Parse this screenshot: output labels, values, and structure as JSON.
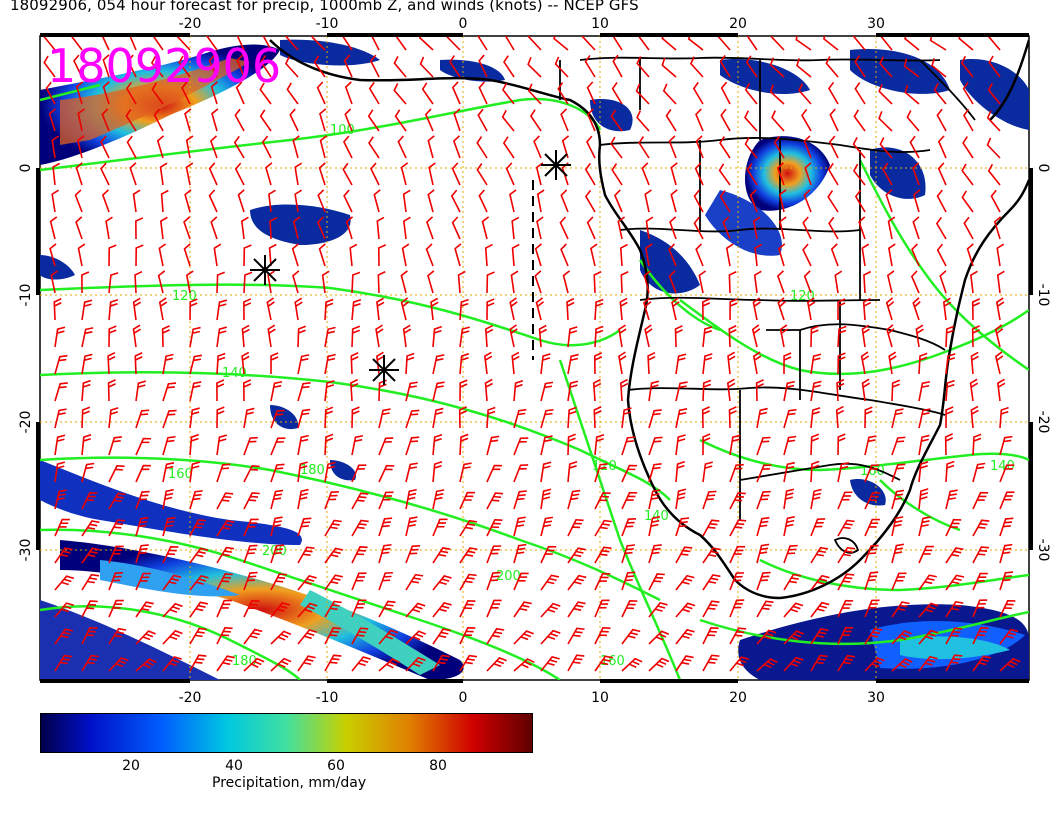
{
  "title": "18092906, 054 hour forecast for precip, 1000mb Z, and winds (knots) -- NCEP GFS",
  "stamp": "18092906",
  "map": {
    "lon_ticks": [
      "-20",
      "-10",
      "0",
      "10",
      "20",
      "30"
    ],
    "lat_ticks": [
      "0",
      "-10",
      "-20",
      "-30"
    ],
    "contour_labels": [
      "100",
      "120",
      "140",
      "160",
      "180",
      "200",
      "120",
      "160",
      "140",
      "200",
      "180",
      "160",
      "140",
      "120"
    ]
  },
  "colorbar": {
    "label": "Precipitation, mm/day",
    "ticks": [
      "20",
      "40",
      "60",
      "80"
    ],
    "colors": [
      "#00004a",
      "#0010c8",
      "#0060ff",
      "#00c8e0",
      "#40e0a0",
      "#c8d000",
      "#e08000",
      "#d00000",
      "#600000"
    ]
  },
  "colors": {
    "coast": "#000000",
    "contour": "#00ff00",
    "barb": "#ff0000",
    "grid": "#ffb000",
    "stamp": "#ff00ff"
  }
}
